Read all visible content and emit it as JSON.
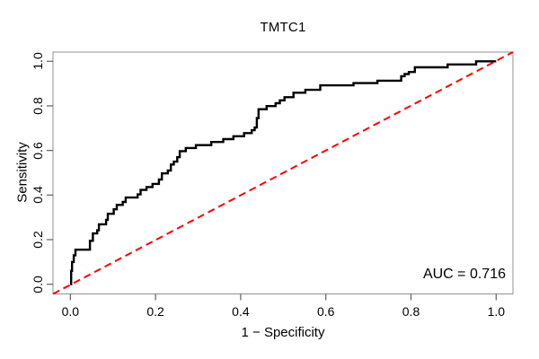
{
  "chart_data": {
    "type": "line",
    "subtype": "roc-step-curve",
    "title": "TMTC1",
    "xlabel": "1 − Specificity",
    "ylabel": "Sensitivity",
    "annotation": "AUC = 0.716",
    "auc_value": 0.716,
    "xlim": [
      0,
      1
    ],
    "ylim": [
      0,
      1
    ],
    "x_ticks": [
      "0.0",
      "0.2",
      "0.4",
      "0.6",
      "0.8",
      "1.0"
    ],
    "y_ticks": [
      "0.0",
      "0.2",
      "0.4",
      "0.6",
      "0.8",
      "1.0"
    ],
    "grid": false,
    "legend_position": "none",
    "colors": {
      "curve": "#000000",
      "diagonal": "#ff0000",
      "box": "#909090",
      "ticks": "#606060",
      "text": "#000000"
    },
    "series": [
      {
        "name": "ROC curve",
        "style": "step-solid",
        "color": "#000000",
        "linewidth": 2.4,
        "points": [
          [
            0.0,
            0.0
          ],
          [
            0.002,
            0.06
          ],
          [
            0.004,
            0.1
          ],
          [
            0.008,
            0.13
          ],
          [
            0.012,
            0.155
          ],
          [
            0.04,
            0.155
          ],
          [
            0.046,
            0.195
          ],
          [
            0.053,
            0.228
          ],
          [
            0.063,
            0.242
          ],
          [
            0.067,
            0.269
          ],
          [
            0.084,
            0.289
          ],
          [
            0.088,
            0.316
          ],
          [
            0.102,
            0.336
          ],
          [
            0.109,
            0.356
          ],
          [
            0.123,
            0.369
          ],
          [
            0.13,
            0.389
          ],
          [
            0.158,
            0.403
          ],
          [
            0.165,
            0.423
          ],
          [
            0.179,
            0.436
          ],
          [
            0.193,
            0.45
          ],
          [
            0.208,
            0.47
          ],
          [
            0.215,
            0.497
          ],
          [
            0.229,
            0.51
          ],
          [
            0.236,
            0.537
          ],
          [
            0.243,
            0.55
          ],
          [
            0.251,
            0.57
          ],
          [
            0.257,
            0.597
          ],
          [
            0.271,
            0.611
          ],
          [
            0.295,
            0.624
          ],
          [
            0.331,
            0.638
          ],
          [
            0.359,
            0.651
          ],
          [
            0.383,
            0.664
          ],
          [
            0.408,
            0.678
          ],
          [
            0.426,
            0.691
          ],
          [
            0.433,
            0.703
          ],
          [
            0.438,
            0.745
          ],
          [
            0.442,
            0.785
          ],
          [
            0.461,
            0.799
          ],
          [
            0.482,
            0.812
          ],
          [
            0.492,
            0.825
          ],
          [
            0.503,
            0.839
          ],
          [
            0.524,
            0.859
          ],
          [
            0.552,
            0.872
          ],
          [
            0.587,
            0.892
          ],
          [
            0.665,
            0.902
          ],
          [
            0.721,
            0.913
          ],
          [
            0.777,
            0.933
          ],
          [
            0.785,
            0.943
          ],
          [
            0.795,
            0.952
          ],
          [
            0.809,
            0.973
          ],
          [
            0.886,
            0.986
          ],
          [
            0.953,
            1.0
          ],
          [
            1.0,
            1.0
          ]
        ]
      },
      {
        "name": "Chance diagonal",
        "style": "dashed",
        "color": "#ff0000",
        "linewidth": 2,
        "points": [
          [
            0,
            0
          ],
          [
            1,
            1
          ]
        ]
      }
    ]
  }
}
